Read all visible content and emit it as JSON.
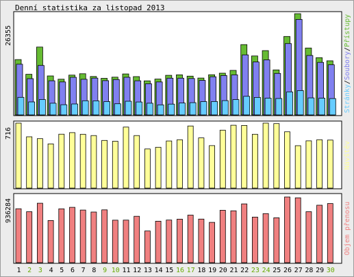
{
  "title": "Denní statistika za listopad 2013",
  "colors": {
    "pristupy": "#66bb33",
    "soubory": "#8080f0",
    "stranky": "#66ccff",
    "navstevy": "#ffff99",
    "objem": "#f08080",
    "weekday_label": "#000000",
    "weekend_label": "#66aa00"
  },
  "chart_data": [
    {
      "type": "bar",
      "panel": "hits",
      "ymax_label": "26355",
      "ylim": [
        0,
        26355
      ],
      "legend": [
        {
          "text": "Přístupy",
          "color_key": "pristupy"
        },
        {
          "text": "Soubory",
          "color_key": "soubory"
        },
        {
          "text": "Stránky",
          "color_key": "stranky"
        }
      ],
      "categories": [
        "1",
        "2",
        "3",
        "4",
        "5",
        "6",
        "7",
        "8",
        "9",
        "10",
        "11",
        "12",
        "13",
        "14",
        "15",
        "16",
        "17",
        "18",
        "19",
        "20",
        "21",
        "22",
        "23",
        "24",
        "25",
        "26",
        "27",
        "28",
        "29",
        "30"
      ],
      "series": [
        {
          "name": "Přístupy",
          "values": [
            14400,
            10580,
            17670,
            10150,
            9300,
            10370,
            10720,
            10000,
            9520,
            9830,
            10660,
            9970,
            8870,
            9330,
            10310,
            10440,
            10100,
            9600,
            10450,
            10870,
            11590,
            18300,
            15350,
            16740,
            11710,
            20420,
            26355,
            17410,
            14900,
            14090
          ]
        },
        {
          "name": "Soubory",
          "values": [
            13200,
            9440,
            12870,
            8880,
            8580,
            9790,
            9270,
            9580,
            8930,
            9200,
            9800,
            8880,
            8120,
            8580,
            9570,
            9560,
            9480,
            9000,
            9930,
            10260,
            10440,
            15630,
            13780,
            14340,
            10810,
            18570,
            24860,
            15480,
            13680,
            13060
          ]
        },
        {
          "name": "Stránky",
          "values": [
            4580,
            3380,
            4000,
            3040,
            2650,
            2850,
            3680,
            3660,
            3470,
            2900,
            3560,
            3370,
            3040,
            2620,
            2820,
            3090,
            3190,
            3470,
            3490,
            3720,
            3990,
            4850,
            4560,
            4360,
            4270,
            6000,
            6340,
            4430,
            4370,
            4260
          ]
        }
      ]
    },
    {
      "type": "bar",
      "panel": "visits",
      "ymax_label": "716",
      "ylim": [
        0,
        716
      ],
      "legend": [
        {
          "text": "Návštěv",
          "color_key": "navstevy"
        }
      ],
      "categories": [
        "1",
        "2",
        "3",
        "4",
        "5",
        "6",
        "7",
        "8",
        "9",
        "10",
        "11",
        "12",
        "13",
        "14",
        "15",
        "16",
        "17",
        "18",
        "19",
        "20",
        "21",
        "22",
        "23",
        "24",
        "25",
        "26",
        "27",
        "28",
        "29",
        "30"
      ],
      "series": [
        {
          "name": "Návštěv",
          "values": [
            716,
            565,
            545,
            487,
            594,
            611,
            593,
            579,
            525,
            516,
            672,
            579,
            431,
            450,
            519,
            533,
            684,
            553,
            468,
            638,
            693,
            690,
            593,
            716,
            711,
            620,
            467,
            521,
            533,
            529
          ]
        }
      ]
    },
    {
      "type": "bar",
      "panel": "volume",
      "ymax_label": "936284",
      "ylim": [
        0,
        936284
      ],
      "legend": [
        {
          "text": "Objem přenosu",
          "color_key": "objem"
        }
      ],
      "categories": [
        "1",
        "2",
        "3",
        "4",
        "5",
        "6",
        "7",
        "8",
        "9",
        "10",
        "11",
        "12",
        "13",
        "14",
        "15",
        "16",
        "17",
        "18",
        "19",
        "20",
        "21",
        "22",
        "23",
        "24",
        "25",
        "26",
        "27",
        "28",
        "29",
        "30"
      ],
      "series": [
        {
          "name": "Objem přenosu",
          "values": [
            769000,
            727000,
            848000,
            601000,
            768000,
            789000,
            750000,
            722000,
            753000,
            606000,
            607000,
            661000,
            452000,
            591000,
            608000,
            620000,
            678000,
            621000,
            574000,
            747000,
            739000,
            838000,
            650000,
            699000,
            640000,
            936284,
            925000,
            727000,
            819000,
            843000
          ]
        }
      ]
    }
  ]
}
